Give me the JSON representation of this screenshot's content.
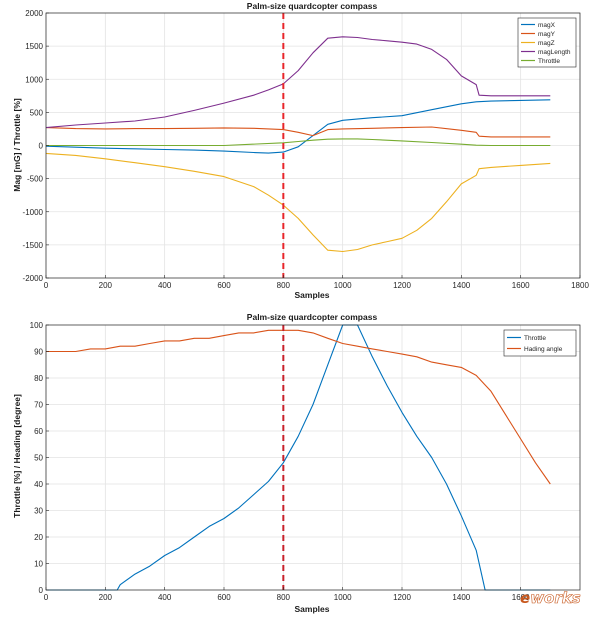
{
  "watermark": {
    "text_a": "e",
    "text_b": "works",
    "color": "#c8581e"
  },
  "chart_data": [
    {
      "type": "line",
      "title": "Palm-size quardcopter compass",
      "xlabel": "Samples",
      "ylabel": "Mag [mG] / Throttle [%]",
      "xlim": [
        0,
        1800
      ],
      "ylim": [
        -2000,
        2000
      ],
      "xticks": [
        0,
        200,
        400,
        600,
        800,
        1000,
        1200,
        1400,
        1600,
        1800
      ],
      "yticks": [
        -2000,
        -1500,
        -1000,
        -500,
        0,
        500,
        1000,
        1500,
        2000
      ],
      "grid": true,
      "legend_position": "top-right",
      "vline_x": 800,
      "vline_color": "#e8262b",
      "series": [
        {
          "name": "magX",
          "color": "#0072bd",
          "x": [
            0,
            100,
            200,
            300,
            400,
            500,
            600,
            700,
            750,
            800,
            850,
            900,
            950,
            1000,
            1100,
            1200,
            1300,
            1400,
            1450,
            1500,
            1600,
            1700
          ],
          "y": [
            -10,
            -25,
            -40,
            -50,
            -60,
            -70,
            -85,
            -105,
            -115,
            -100,
            -20,
            150,
            320,
            380,
            420,
            450,
            540,
            630,
            660,
            670,
            680,
            690
          ]
        },
        {
          "name": "magY",
          "color": "#d95319",
          "x": [
            0,
            100,
            200,
            300,
            400,
            500,
            600,
            700,
            750,
            800,
            850,
            900,
            950,
            1000,
            1100,
            1200,
            1300,
            1400,
            1450,
            1460,
            1500,
            1600,
            1700
          ],
          "y": [
            270,
            255,
            250,
            255,
            255,
            260,
            265,
            260,
            250,
            240,
            200,
            150,
            240,
            250,
            260,
            270,
            280,
            230,
            200,
            140,
            130,
            130,
            130
          ]
        },
        {
          "name": "magZ",
          "color": "#edb120",
          "x": [
            0,
            100,
            200,
            300,
            400,
            500,
            600,
            700,
            750,
            800,
            850,
            900,
            950,
            1000,
            1050,
            1100,
            1150,
            1200,
            1250,
            1300,
            1350,
            1400,
            1450,
            1460,
            1500,
            1600,
            1700
          ],
          "y": [
            -120,
            -150,
            -200,
            -260,
            -320,
            -390,
            -470,
            -620,
            -750,
            -900,
            -1100,
            -1350,
            -1580,
            -1600,
            -1570,
            -1500,
            -1450,
            -1400,
            -1280,
            -1100,
            -850,
            -580,
            -450,
            -350,
            -330,
            -300,
            -270
          ]
        },
        {
          "name": "magLength",
          "color": "#7e2f8e",
          "x": [
            0,
            100,
            200,
            300,
            400,
            500,
            600,
            700,
            750,
            800,
            850,
            900,
            950,
            1000,
            1050,
            1100,
            1150,
            1200,
            1250,
            1300,
            1350,
            1400,
            1450,
            1460,
            1500,
            1600,
            1700
          ],
          "y": [
            270,
            310,
            340,
            370,
            430,
            530,
            640,
            760,
            840,
            930,
            1130,
            1400,
            1620,
            1640,
            1630,
            1600,
            1580,
            1560,
            1530,
            1450,
            1300,
            1050,
            920,
            760,
            750,
            750,
            750
          ]
        },
        {
          "name": "Throttle",
          "color": "#77ac30",
          "x": [
            0,
            200,
            400,
            600,
            800,
            850,
            900,
            950,
            1000,
            1050,
            1100,
            1200,
            1300,
            1400,
            1450,
            1500,
            1700
          ],
          "y": [
            0,
            0,
            0,
            0,
            40,
            60,
            80,
            95,
            100,
            100,
            90,
            70,
            45,
            20,
            5,
            0,
            0
          ]
        }
      ]
    },
    {
      "type": "line",
      "title": "Palm-size quardcopter compass",
      "xlabel": "Samples",
      "ylabel": "Throttle [%] / Heading [degree]",
      "xlim": [
        0,
        1800
      ],
      "ylim": [
        0,
        100
      ],
      "xticks": [
        0,
        200,
        400,
        600,
        800,
        1000,
        1200,
        1400,
        1600
      ],
      "yticks": [
        0,
        10,
        20,
        30,
        40,
        50,
        60,
        70,
        80,
        90,
        100
      ],
      "grid": true,
      "legend_position": "top-right",
      "vline_x": 800,
      "vline_color": "#c8202a",
      "series": [
        {
          "name": "Throttle",
          "color": "#0072bd",
          "x": [
            0,
            240,
            250,
            300,
            350,
            400,
            450,
            500,
            550,
            600,
            650,
            700,
            750,
            800,
            850,
            900,
            950,
            1000,
            1050,
            1100,
            1150,
            1200,
            1250,
            1300,
            1350,
            1400,
            1450,
            1480,
            1500,
            1600,
            1700
          ],
          "y": [
            0,
            0,
            2,
            6,
            9,
            13,
            16,
            20,
            24,
            27,
            31,
            36,
            41,
            48,
            58,
            70,
            85,
            100,
            100,
            88,
            77,
            67,
            58,
            50,
            40,
            28,
            15,
            0,
            0,
            0,
            0
          ]
        },
        {
          "name": "Hading angle",
          "color": "#d95319",
          "x": [
            0,
            50,
            100,
            150,
            200,
            250,
            300,
            350,
            400,
            450,
            500,
            550,
            600,
            650,
            700,
            750,
            800,
            850,
            900,
            950,
            1000,
            1050,
            1100,
            1150,
            1200,
            1250,
            1300,
            1350,
            1400,
            1450,
            1500,
            1550,
            1600,
            1650,
            1700
          ],
          "y": [
            90,
            90,
            90,
            91,
            91,
            92,
            92,
            93,
            94,
            94,
            95,
            95,
            96,
            97,
            97,
            98,
            98,
            98,
            97,
            95,
            93,
            92,
            91,
            90,
            89,
            88,
            86,
            85,
            84,
            81,
            75,
            66,
            57,
            48,
            40
          ]
        }
      ]
    }
  ]
}
